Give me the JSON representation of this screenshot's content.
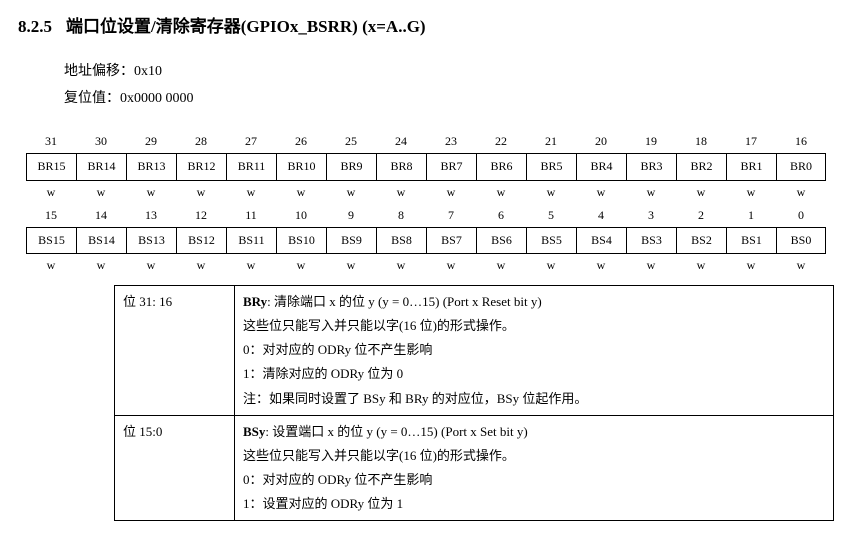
{
  "heading": {
    "section": "8.2.5",
    "title": "端口位设置/清除寄存器(GPIOx_BSRR) (x=A..G)"
  },
  "info": {
    "addr_label": "地址偏移：",
    "addr_value": "0x10",
    "reset_label": "复位值：",
    "reset_value": "0x0000 0000"
  },
  "bits_high": {
    "nums": [
      "31",
      "30",
      "29",
      "28",
      "27",
      "26",
      "25",
      "24",
      "23",
      "22",
      "21",
      "20",
      "19",
      "18",
      "17",
      "16"
    ],
    "names": [
      "BR15",
      "BR14",
      "BR13",
      "BR12",
      "BR11",
      "BR10",
      "BR9",
      "BR8",
      "BR7",
      "BR6",
      "BR5",
      "BR4",
      "BR3",
      "BR2",
      "BR1",
      "BR0"
    ],
    "rw": [
      "w",
      "w",
      "w",
      "w",
      "w",
      "w",
      "w",
      "w",
      "w",
      "w",
      "w",
      "w",
      "w",
      "w",
      "w",
      "w"
    ]
  },
  "bits_low": {
    "nums": [
      "15",
      "14",
      "13",
      "12",
      "11",
      "10",
      "9",
      "8",
      "7",
      "6",
      "5",
      "4",
      "3",
      "2",
      "1",
      "0"
    ],
    "names": [
      "BS15",
      "BS14",
      "BS13",
      "BS12",
      "BS11",
      "BS10",
      "BS9",
      "BS8",
      "BS7",
      "BS6",
      "BS5",
      "BS4",
      "BS3",
      "BS2",
      "BS1",
      "BS0"
    ],
    "rw": [
      "w",
      "w",
      "w",
      "w",
      "w",
      "w",
      "w",
      "w",
      "w",
      "w",
      "w",
      "w",
      "w",
      "w",
      "w",
      "w"
    ]
  },
  "desc": [
    {
      "bits": "位 31: 16",
      "name_bold": "BRy",
      "name_rest": ":  清除端口 x 的位 y (y = 0…15) (Port x Reset bit y)",
      "lines": [
        "这些位只能写入并只能以字(16 位)的形式操作。",
        "0：对对应的 ODRy 位不产生影响",
        "1：清除对应的 ODRy 位为 0",
        "注：如果同时设置了 BSy 和 BRy 的对应位，BSy 位起作用。"
      ]
    },
    {
      "bits": "位 15:0",
      "name_bold": "BSy",
      "name_rest": ":  设置端口 x 的位 y (y = 0…15) (Port x Set bit y)",
      "lines": [
        "这些位只能写入并只能以字(16 位)的形式操作。",
        "0：对对应的 ODRy 位不产生影响",
        "1：设置对应的 ODRy 位为 1"
      ]
    }
  ]
}
